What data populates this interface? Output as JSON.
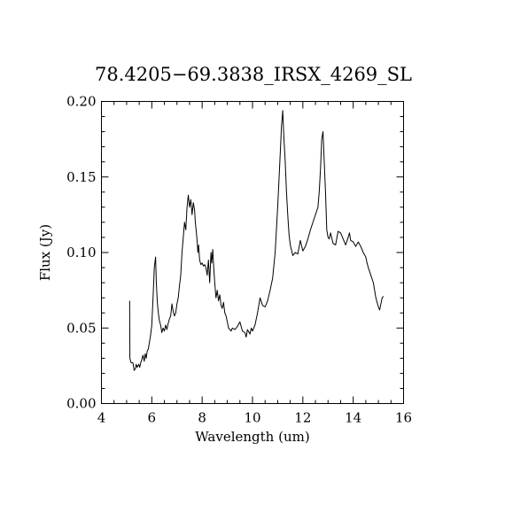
{
  "chart_data": {
    "type": "line",
    "title": "78.4205−69.3838_IRSX_4269_SL",
    "xlabel": "Wavelength (um)",
    "ylabel": "Flux (Jy)",
    "xlim": [
      4,
      16
    ],
    "ylim": [
      0.0,
      0.2
    ],
    "xticks": [
      4,
      6,
      8,
      10,
      12,
      14,
      16
    ],
    "xtick_labels": [
      "4",
      "6",
      "8",
      "10",
      "12",
      "14",
      "16"
    ],
    "xminor_step": 0.5,
    "yticks": [
      0.0,
      0.05,
      0.1,
      0.15,
      0.2
    ],
    "ytick_labels": [
      "0.00",
      "0.05",
      "0.10",
      "0.15",
      "0.20"
    ],
    "yminor_step": 0.01,
    "grid": false,
    "series": [
      {
        "x": [
          5.12,
          5.13,
          5.18,
          5.25,
          5.3,
          5.35,
          5.38,
          5.42,
          5.48,
          5.52,
          5.56,
          5.6,
          5.65,
          5.7,
          5.74,
          5.78,
          5.82,
          5.86,
          5.9,
          5.95,
          6.0,
          6.05,
          6.1,
          6.15,
          6.18,
          6.22,
          6.26,
          6.3,
          6.35,
          6.4,
          6.45,
          6.5,
          6.55,
          6.6,
          6.65,
          6.7,
          6.75,
          6.8,
          6.85,
          6.9,
          6.95,
          7.0,
          7.05,
          7.1,
          7.15,
          7.2,
          7.25,
          7.3,
          7.35,
          7.4,
          7.45,
          7.5,
          7.55,
          7.6,
          7.65,
          7.7,
          7.73,
          7.76,
          7.8,
          7.83,
          7.86,
          7.9,
          7.95,
          8.0,
          8.05,
          8.1,
          8.15,
          8.2,
          8.25,
          8.3,
          8.35,
          8.38,
          8.42,
          8.46,
          8.5,
          8.55,
          8.6,
          8.65,
          8.7,
          8.75,
          8.8,
          8.85,
          8.9,
          8.95,
          9.0,
          9.05,
          9.1,
          9.15,
          9.2,
          9.3,
          9.4,
          9.5,
          9.6,
          9.7,
          9.75,
          9.8,
          9.9,
          9.95,
          10.0,
          10.05,
          10.1,
          10.2,
          10.3,
          10.4,
          10.5,
          10.6,
          10.7,
          10.8,
          10.9,
          11.0,
          11.1,
          11.15,
          11.2,
          11.25,
          11.3,
          11.35,
          11.4,
          11.45,
          11.5,
          11.6,
          11.7,
          11.8,
          11.9,
          12.0,
          12.1,
          12.2,
          12.3,
          12.4,
          12.5,
          12.6,
          12.65,
          12.7,
          12.75,
          12.8,
          12.85,
          12.9,
          12.95,
          13.0,
          13.05,
          13.1,
          13.2,
          13.3,
          13.4,
          13.5,
          13.6,
          13.7,
          13.8,
          13.85,
          13.9,
          14.0,
          14.1,
          14.2,
          14.3,
          14.4,
          14.5,
          14.55,
          14.6,
          14.7,
          14.8,
          14.9,
          15.0,
          15.05,
          15.1,
          15.15,
          15.2
        ],
        "y": [
          0.068,
          0.03,
          0.027,
          0.027,
          0.022,
          0.023,
          0.026,
          0.024,
          0.026,
          0.024,
          0.027,
          0.029,
          0.032,
          0.028,
          0.033,
          0.03,
          0.035,
          0.036,
          0.04,
          0.045,
          0.052,
          0.07,
          0.09,
          0.097,
          0.08,
          0.067,
          0.06,
          0.055,
          0.052,
          0.047,
          0.05,
          0.048,
          0.052,
          0.049,
          0.053,
          0.056,
          0.058,
          0.066,
          0.061,
          0.058,
          0.06,
          0.066,
          0.07,
          0.078,
          0.085,
          0.1,
          0.11,
          0.12,
          0.115,
          0.13,
          0.138,
          0.13,
          0.135,
          0.125,
          0.133,
          0.128,
          0.12,
          0.115,
          0.108,
          0.1,
          0.105,
          0.095,
          0.092,
          0.093,
          0.091,
          0.092,
          0.09,
          0.085,
          0.095,
          0.08,
          0.1,
          0.093,
          0.102,
          0.09,
          0.08,
          0.07,
          0.075,
          0.068,
          0.072,
          0.065,
          0.063,
          0.067,
          0.06,
          0.058,
          0.054,
          0.05,
          0.049,
          0.048,
          0.05,
          0.049,
          0.051,
          0.054,
          0.048,
          0.047,
          0.044,
          0.049,
          0.046,
          0.05,
          0.048,
          0.05,
          0.052,
          0.06,
          0.07,
          0.065,
          0.064,
          0.068,
          0.075,
          0.083,
          0.1,
          0.13,
          0.165,
          0.183,
          0.194,
          0.175,
          0.16,
          0.14,
          0.125,
          0.112,
          0.105,
          0.098,
          0.1,
          0.099,
          0.108,
          0.101,
          0.104,
          0.109,
          0.115,
          0.12,
          0.125,
          0.13,
          0.14,
          0.155,
          0.175,
          0.18,
          0.16,
          0.14,
          0.115,
          0.11,
          0.109,
          0.113,
          0.106,
          0.105,
          0.114,
          0.113,
          0.109,
          0.105,
          0.11,
          0.113,
          0.108,
          0.107,
          0.104,
          0.107,
          0.104,
          0.1,
          0.097,
          0.093,
          0.09,
          0.085,
          0.08,
          0.07,
          0.064,
          0.062,
          0.066,
          0.07,
          0.071
        ]
      }
    ]
  }
}
